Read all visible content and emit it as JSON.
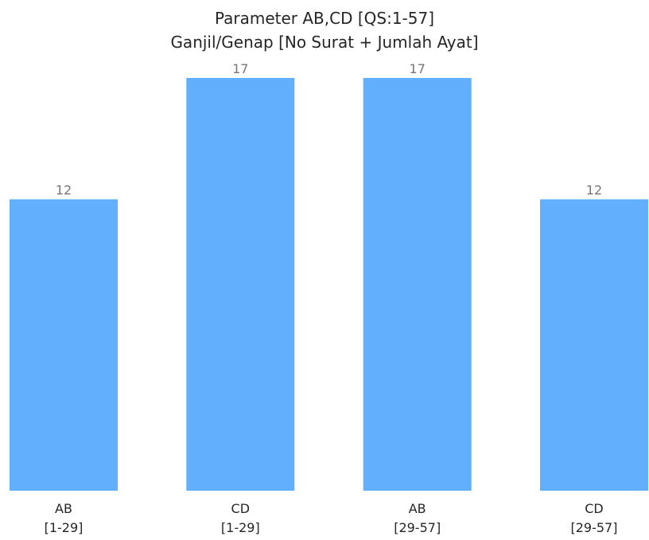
{
  "chart_data": {
    "type": "bar",
    "title": "Parameter AB,CD [QS:1-57]",
    "subtitle": "Ganjil/Genap [No Surat + Jumlah Ayat]",
    "categories": [
      [
        "AB",
        "[1-29]"
      ],
      [
        "CD",
        "[1-29]"
      ],
      [
        "AB",
        "[29-57]"
      ],
      [
        "CD",
        "[29-57]"
      ]
    ],
    "values": [
      12,
      17,
      17,
      12
    ],
    "ylim": [
      0,
      17
    ],
    "grid": false,
    "show_y_axis": false,
    "bar_color": "#62AFFE",
    "label_color": "#777777"
  }
}
